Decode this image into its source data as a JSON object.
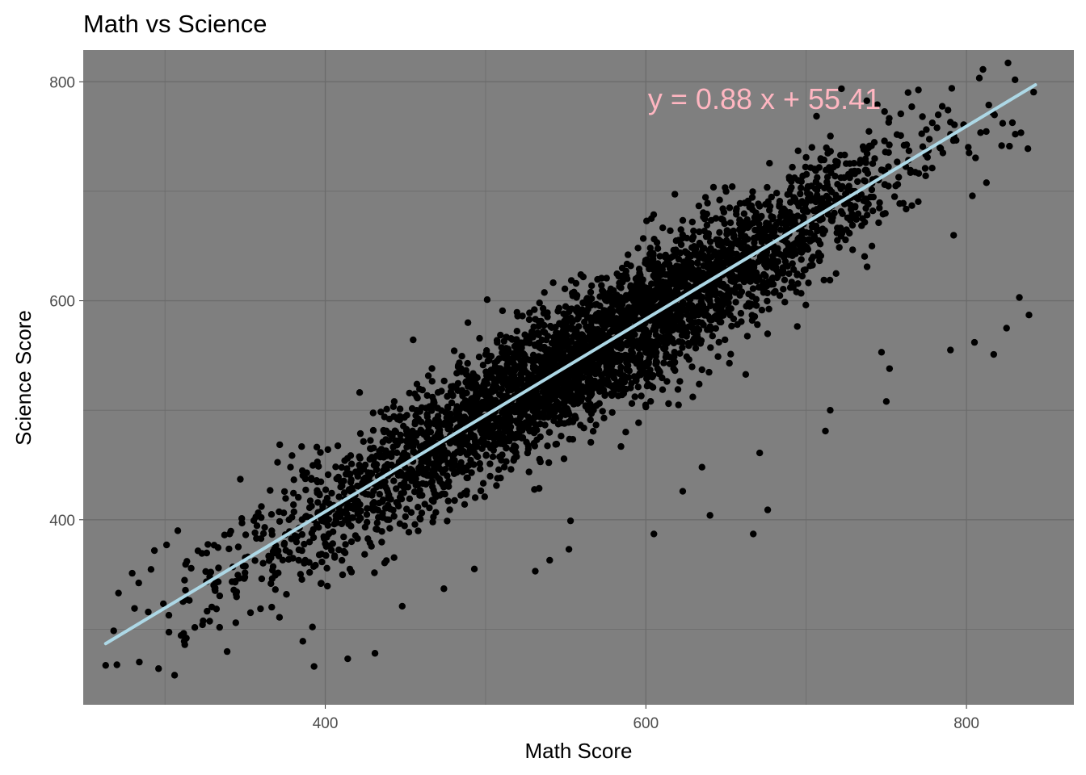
{
  "chart_data": {
    "type": "scatter",
    "title": "Math vs Science",
    "xlabel": "Math Score",
    "ylabel": "Science Score",
    "xlim": [
      249,
      867
    ],
    "ylim": [
      231,
      829
    ],
    "x_major_ticks": [
      400,
      600,
      800
    ],
    "x_minor_ticks": [
      300,
      500,
      700
    ],
    "y_major_ticks": [
      400,
      600,
      800
    ],
    "y_minor_ticks": [
      300,
      500,
      700
    ],
    "x_tick_labels": [
      "400",
      "600",
      "800"
    ],
    "y_tick_labels": [
      "400",
      "600",
      "800"
    ],
    "grid": true,
    "panel_color": "#7f7f7f",
    "grid_color": "#6b6b6b",
    "point_color": "#000000",
    "points_description": "dense cloud of ~10000 student score pairs along the fitted line",
    "regression": {
      "slope": 0.88,
      "intercept": 55.41,
      "x_range": [
        263,
        843
      ],
      "color": "#add8e6",
      "label": "y =  0.88 x +  55.41",
      "label_color": "#ffb6c1",
      "label_anchor": [
        680,
        784
      ]
    },
    "outliers": [
      [
        263,
        267
      ],
      [
        284,
        270
      ],
      [
        296,
        264
      ],
      [
        306,
        258
      ],
      [
        312,
        289
      ],
      [
        301,
        377
      ],
      [
        308,
        390
      ],
      [
        271,
        333
      ],
      [
        281,
        319
      ],
      [
        347,
        437
      ],
      [
        393,
        266
      ],
      [
        414,
        273
      ],
      [
        431,
        278
      ],
      [
        386,
        289
      ],
      [
        392,
        302
      ],
      [
        448,
        321
      ],
      [
        474,
        337
      ],
      [
        493,
        355
      ],
      [
        531,
        353
      ],
      [
        540,
        363
      ],
      [
        552,
        373
      ],
      [
        605,
        387
      ],
      [
        640,
        404
      ],
      [
        667,
        387
      ],
      [
        676,
        409
      ],
      [
        553,
        399
      ],
      [
        623,
        426
      ],
      [
        635,
        448
      ],
      [
        671,
        461
      ],
      [
        712,
        481
      ],
      [
        715,
        500
      ],
      [
        750,
        508
      ],
      [
        752,
        538
      ],
      [
        747,
        553
      ],
      [
        790,
        555
      ],
      [
        805,
        562
      ],
      [
        817,
        551
      ],
      [
        825,
        575
      ],
      [
        839,
        587
      ],
      [
        833,
        603
      ],
      [
        520,
        488
      ],
      [
        541,
        496
      ],
      [
        566,
        497
      ],
      [
        579,
        498
      ],
      [
        600,
        503
      ],
      [
        620,
        519
      ],
      [
        635,
        537
      ],
      [
        645,
        549
      ],
      [
        501,
        601
      ],
      [
        489,
        580
      ],
      [
        520,
        586
      ],
      [
        618,
        544
      ],
      [
        585,
        521
      ],
      [
        532,
        473
      ],
      [
        468,
        470
      ],
      [
        440,
        492
      ],
      [
        522,
        528
      ],
      [
        559,
        559
      ],
      [
        694,
        608
      ],
      [
        738,
        631
      ]
    ]
  }
}
